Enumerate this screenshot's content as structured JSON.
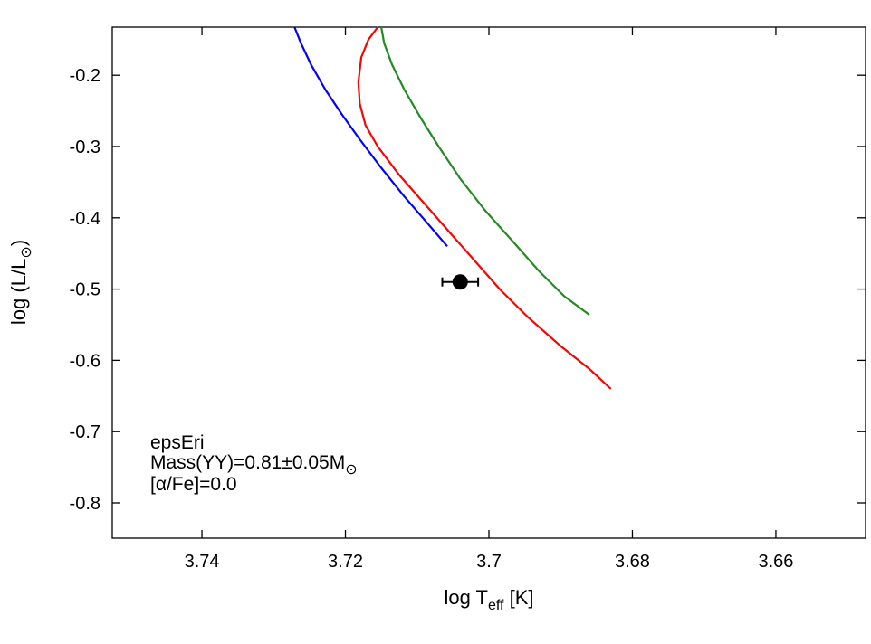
{
  "chart_data": {
    "type": "line",
    "title": "",
    "xlabel": {
      "prefix": "log T",
      "sub": "eff",
      "suffix": " [K]"
    },
    "ylabel": {
      "prefix": "log (L/L",
      "sub": "⊙",
      "suffix": ")"
    },
    "xlim": [
      3.7525,
      3.6475
    ],
    "ylim": [
      -0.8495,
      -0.1325
    ],
    "x_reversed": true,
    "xticks": [
      3.74,
      3.72,
      3.7,
      3.68,
      3.66
    ],
    "xtick_labels": [
      "3.74",
      "3.72",
      "3.7",
      "3.68",
      "3.66"
    ],
    "yticks": [
      -0.2,
      -0.3,
      -0.4,
      -0.5,
      -0.6,
      -0.7,
      -0.8
    ],
    "ytick_labels": [
      "-0.2",
      "-0.3",
      "-0.4",
      "-0.5",
      "-0.6",
      "-0.7",
      "-0.8"
    ],
    "grid": false,
    "series": [
      {
        "color": "#0000ff",
        "points": [
          [
            3.7271,
            -0.1325
          ],
          [
            3.7262,
            -0.155
          ],
          [
            3.7248,
            -0.185
          ],
          [
            3.7228,
            -0.22
          ],
          [
            3.7205,
            -0.255
          ],
          [
            3.718,
            -0.29
          ],
          [
            3.715,
            -0.33
          ],
          [
            3.7118,
            -0.37
          ],
          [
            3.7088,
            -0.405
          ],
          [
            3.7058,
            -0.44
          ]
        ]
      },
      {
        "color": "#228b22",
        "points": [
          [
            3.715,
            -0.1325
          ],
          [
            3.7146,
            -0.155
          ],
          [
            3.7135,
            -0.185
          ],
          [
            3.7118,
            -0.22
          ],
          [
            3.7095,
            -0.26
          ],
          [
            3.707,
            -0.3
          ],
          [
            3.704,
            -0.345
          ],
          [
            3.7005,
            -0.39
          ],
          [
            3.6965,
            -0.435
          ],
          [
            3.693,
            -0.475
          ],
          [
            3.6895,
            -0.51
          ],
          [
            3.686,
            -0.536
          ]
        ]
      },
      {
        "color": "#ff0000",
        "points": [
          [
            3.7155,
            -0.1325
          ],
          [
            3.7168,
            -0.15
          ],
          [
            3.7178,
            -0.175
          ],
          [
            3.7182,
            -0.21
          ],
          [
            3.718,
            -0.24
          ],
          [
            3.7172,
            -0.27
          ],
          [
            3.7155,
            -0.3
          ],
          [
            3.7125,
            -0.34
          ],
          [
            3.709,
            -0.38
          ],
          [
            3.7055,
            -0.42
          ],
          [
            3.702,
            -0.46
          ],
          [
            3.6985,
            -0.5
          ],
          [
            3.6945,
            -0.54
          ],
          [
            3.69,
            -0.58
          ],
          [
            3.686,
            -0.612
          ],
          [
            3.683,
            -0.64
          ]
        ]
      }
    ],
    "observation": {
      "x": 3.704,
      "y": -0.49,
      "xerr": 0.0025
    },
    "annotation": {
      "line1": "epsEri",
      "line2_prefix": "Mass(YY)=0.81±0.05M",
      "line2_sub": "⊙",
      "line3": "[α/Fe]=0.0"
    }
  }
}
